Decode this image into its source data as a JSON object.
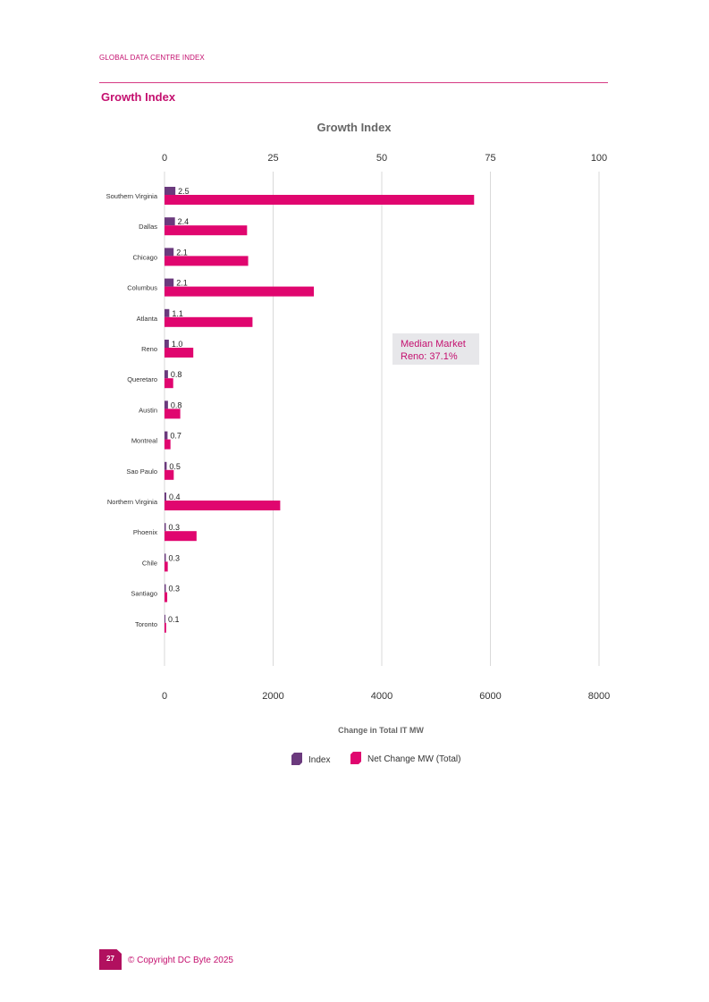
{
  "header": {
    "label": "GLOBAL DATA CENTRE INDEX",
    "section_title": "Growth Index"
  },
  "chart_data": {
    "type": "bar",
    "orientation": "horizontal",
    "title": "Growth Index",
    "xlabel": "Change in Total IT MW",
    "categories": [
      "Southern Virginia",
      "Dallas",
      "Chicago",
      "Columbus",
      "Atlanta",
      "Reno",
      "Queretaro",
      "Austin",
      "Montreal",
      "Sao Paulo",
      "Northern Virginia",
      "Phoenix",
      "Chile",
      "Santiago",
      "Toronto"
    ],
    "series": [
      {
        "name": "Index",
        "axis": "top",
        "color": "#6b3a7d",
        "values": [
          2.5,
          2.4,
          2.1,
          2.1,
          1.1,
          1.0,
          0.8,
          0.8,
          0.7,
          0.5,
          0.4,
          0.3,
          0.3,
          0.3,
          0.1
        ],
        "labels": [
          "2.5",
          "2.4",
          "2.1",
          "2.1",
          "1.1",
          "1.0",
          "0.8",
          "0.8",
          "0.7",
          "0.5",
          "0.4",
          "0.3",
          "0.3",
          "0.3",
          "0.1"
        ]
      },
      {
        "name": "Net Change MW (Total)",
        "axis": "bottom",
        "color": "#e0066f",
        "values": [
          5700,
          1520,
          1540,
          2750,
          1620,
          530,
          160,
          290,
          110,
          170,
          2130,
          590,
          60,
          50,
          30
        ]
      }
    ],
    "top_axis": {
      "range": [
        0,
        100
      ],
      "ticks": [
        0,
        25,
        50,
        75,
        100
      ],
      "tick_labels": [
        "0",
        "25",
        "50",
        "75",
        "100"
      ]
    },
    "bottom_axis": {
      "range": [
        0,
        8000
      ],
      "ticks": [
        0,
        2000,
        4000,
        6000,
        8000
      ],
      "tick_labels": [
        "0",
        "2000",
        "4000",
        "6000",
        "8000"
      ]
    },
    "grid": true,
    "legend_position": "bottom-center",
    "annotation": {
      "line1": "Median Market",
      "line2": "Reno: 37.1%",
      "text_color": "#c4106f",
      "bg_color": "#e7e7ea"
    }
  },
  "footer": {
    "page_number": "27",
    "copyright": "© Copyright DC Byte 2025"
  }
}
